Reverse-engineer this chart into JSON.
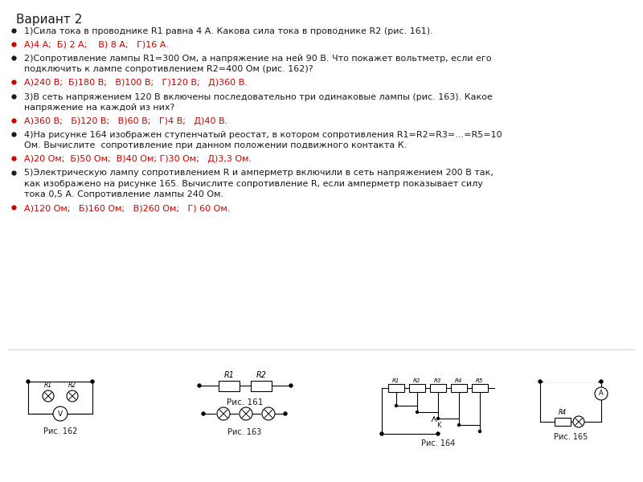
{
  "title": "Вариант 2",
  "background_color": "#ffffff",
  "text_color_black": "#1a1a1a",
  "text_color_red": "#cc0000",
  "questions": [
    {
      "q": "1)Сила тока в проводнике R1 равна 4 А. Какова сила тока в проводнике R2 (рис. 161).",
      "a": "А)4 А;  Б) 2 А;    В) 8 А;   Г)16 А."
    },
    {
      "q": "2)Сопротивление лампы R1=300 Ом, а напряжение на ней 90 В. Что покажет вольтметр, если его подключить к лампе сопротивлением R2=400 Ом (рис. 162)?",
      "a": "А)240 В;  Б)180 В;   В)100 В;   Г)120 В;   Д)360 В."
    },
    {
      "q": "3)В сеть напряжением 120 В включены последовательно три одинаковые лампы (рис. 163). Какое напряжение на каждой из них?",
      "a": "А)360 В;   Б)120 В;   В)60 В;   Г)4 В;   Д)40 В."
    },
    {
      "q": "4)На рисунке 164 изображен ступенчатый реостат, в котором сопротивления R1=R2=R3=...=R5=10  Ом. Вычислите  сопротивление при данном положении подвижного контакта К.",
      "a": "А)20 Ом;  Б)50 Ом;  В)40 Ом; Г)30 Ом;   Д)3,3 Ом."
    },
    {
      "q": "5)Электрическую лампу сопротивлением R и амперметр включили в сеть напряжением 200 В так, как изображено на рисунке 165. Вычислите сопротивление R, если амперметр показывает силу тока 0,5 А. Сопротивление лампы 240 Ом.",
      "a": "А)120 Ом;   Б)160 Ом;   В)260 Ом;   Г) 60 Ом."
    }
  ],
  "fig161_caption": "Рис. 161",
  "fig162_caption": "Рис. 162",
  "fig163_caption": "Рис. 163",
  "fig164_caption": "Рис. 164",
  "fig165_caption": "Рис. 165"
}
